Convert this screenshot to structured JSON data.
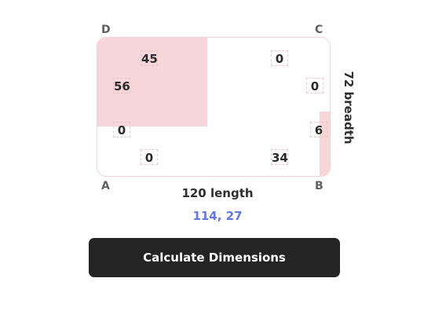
{
  "corners": {
    "a": "A",
    "b": "B",
    "c": "C",
    "d": "D"
  },
  "inputs": {
    "top_left_top": "45",
    "top_left_side": "56",
    "left_lower": "0",
    "bottom_left": "0",
    "top_right_top": "0",
    "right_upper": "0",
    "right_lower": "6",
    "bottom_right": "34"
  },
  "dimensions": {
    "length_label": "120 length",
    "breadth_label": "72 breadth"
  },
  "coords_text": "114, 27",
  "colors": {
    "accent": "#6177e8",
    "fill": "#f6d6d9",
    "button": "#242424"
  },
  "button_label": "Calculate Dimensions"
}
